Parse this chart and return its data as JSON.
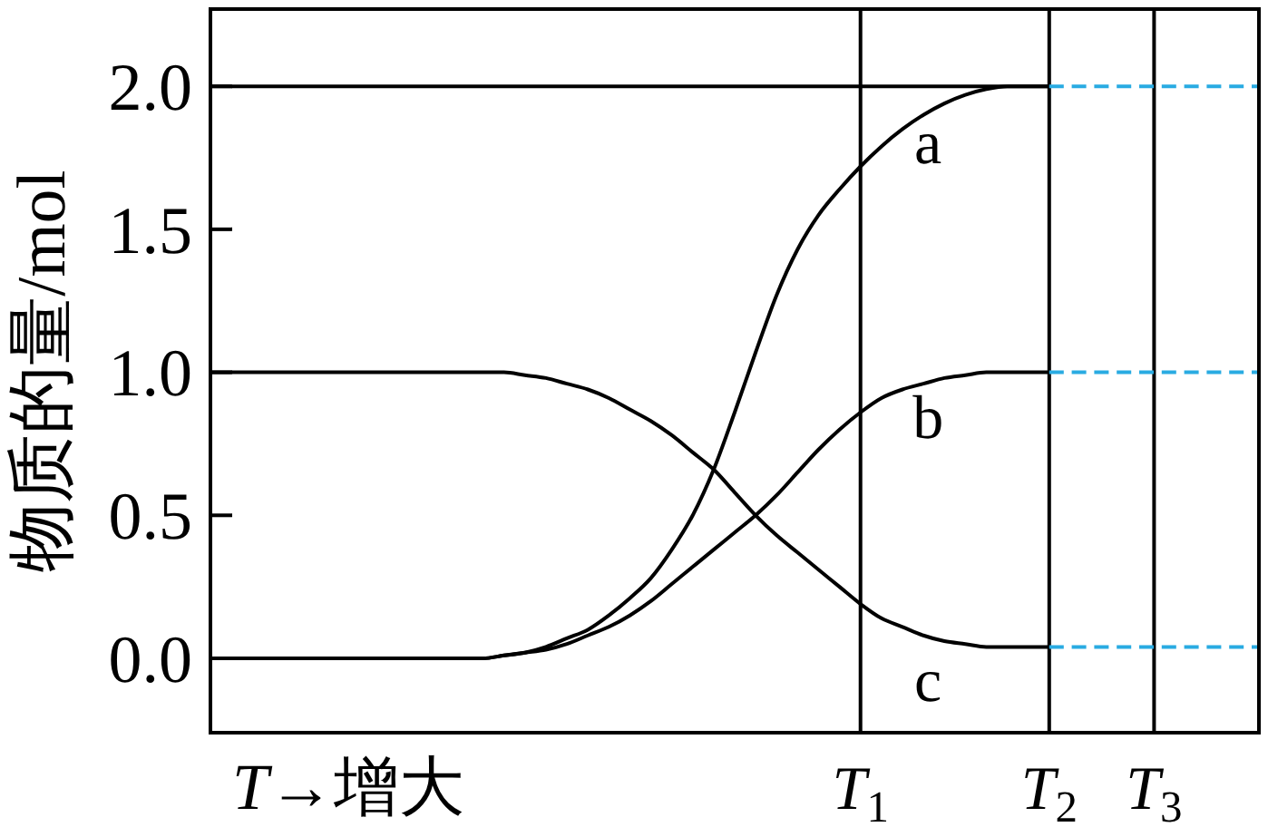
{
  "chart_data": {
    "type": "line",
    "xlabel": "T→增大",
    "ylabel": "物质的量/mol",
    "categories": [
      null,
      null,
      null,
      null,
      null,
      null,
      null,
      null,
      null,
      null,
      null,
      null,
      null,
      null,
      null,
      null,
      null,
      null,
      null,
      null,
      null,
      null,
      null,
      null,
      null,
      null,
      null,
      null,
      null,
      null,
      null,
      "T$_{1}$",
      null,
      null,
      null,
      null,
      null,
      null,
      null,
      null,
      "T$_{2}$",
      null,
      null,
      null,
      null,
      "T$_{3}$",
      null,
      null,
      null,
      null,
      null
    ],
    "ylim": [
      -0.26,
      2.27
    ],
    "yticks": [
      {
        "value": 0,
        "label": "0.0"
      },
      {
        "value": 0.5,
        "label": "0.5"
      },
      {
        "value": 1,
        "label": "1.0"
      },
      {
        "value": 1.5,
        "label": "1.5"
      },
      {
        "value": 2,
        "label": "2.0"
      }
    ],
    "marker": "none",
    "line_style": "solid",
    "ref_lines": [
      {
        "axis": "x",
        "value": "T$_{1}$",
        "color": "#000000"
      },
      {
        "axis": "x",
        "value": "T$_{2}$",
        "color": "#000000"
      },
      {
        "axis": "x",
        "value": "T$_{3}$",
        "color": "#000000"
      }
    ],
    "series": [
      {
        "name": "a",
        "color": "#000000",
        "values": [
          0,
          0,
          0,
          0,
          0,
          0,
          0,
          0,
          0,
          0,
          0,
          0,
          0,
          0,
          0.01,
          0.02,
          0.04,
          0.07,
          0.1,
          0.15,
          0.21,
          0.28,
          0.38,
          0.5,
          0.66,
          0.86,
          1.07,
          1.27,
          1.43,
          1.55,
          1.64,
          1.72,
          1.79,
          1.85,
          1.9,
          1.94,
          1.97,
          1.99,
          2.0,
          2.0,
          2.0,
          null,
          null,
          null,
          null,
          null,
          null,
          null,
          null,
          null,
          null
        ]
      },
      {
        "name": "b",
        "color": "#000000",
        "values": [
          0,
          0,
          0,
          0,
          0,
          0,
          0,
          0,
          0,
          0,
          0,
          0,
          0,
          0,
          0.01,
          0.02,
          0.03,
          0.05,
          0.08,
          0.11,
          0.15,
          0.2,
          0.26,
          0.32,
          0.38,
          0.44,
          0.5,
          0.57,
          0.65,
          0.73,
          0.8,
          0.86,
          0.91,
          0.94,
          0.96,
          0.98,
          0.99,
          1.0,
          1.0,
          1.0,
          1.0,
          null,
          null,
          null,
          null,
          null,
          null,
          null,
          null,
          null,
          null
        ]
      },
      {
        "name": "c",
        "color": "#000000",
        "values": [
          1.0,
          1.0,
          1.0,
          1.0,
          1.0,
          1.0,
          1.0,
          1.0,
          1.0,
          1.0,
          1.0,
          1.0,
          1.0,
          1.0,
          1.0,
          0.99,
          0.98,
          0.96,
          0.94,
          0.91,
          0.87,
          0.83,
          0.78,
          0.72,
          0.66,
          0.58,
          0.5,
          0.43,
          0.37,
          0.31,
          0.25,
          0.19,
          0.14,
          0.11,
          0.08,
          0.06,
          0.05,
          0.04,
          0.04,
          0.04,
          0.04,
          null,
          null,
          null,
          null,
          null,
          null,
          null,
          null,
          null,
          null
        ]
      },
      {
        "color": "#000000",
        "values": [
          2.0,
          2.0,
          2.0,
          2.0,
          2.0,
          2.0,
          2.0,
          2.0,
          2.0,
          2.0,
          2.0,
          2.0,
          2.0,
          2.0,
          2.0,
          2.0,
          2.0,
          2.0,
          2.0,
          2.0,
          2.0,
          2.0,
          2.0,
          2.0,
          2.0,
          2.0,
          2.0,
          2.0,
          2.0,
          2.0,
          2.0,
          2.0,
          2.0,
          2.0,
          2.0,
          2.0,
          2.0,
          2.0,
          2.0,
          2.0,
          2.0,
          null,
          null,
          null,
          null,
          null,
          null,
          null,
          null,
          null,
          null
        ]
      },
      {
        "color": "#29abe2",
        "line_style": "dashed",
        "values": [
          null,
          null,
          null,
          null,
          null,
          null,
          null,
          null,
          null,
          null,
          null,
          null,
          null,
          null,
          null,
          null,
          null,
          null,
          null,
          null,
          null,
          null,
          null,
          null,
          null,
          null,
          null,
          null,
          null,
          null,
          null,
          null,
          null,
          null,
          null,
          null,
          null,
          null,
          null,
          null,
          2.0,
          2.0,
          2.0,
          2.0,
          2.0,
          2.0,
          2.0,
          2.0,
          2.0,
          2.0,
          2.0
        ]
      },
      {
        "color": "#29abe2",
        "line_style": "dashed",
        "values": [
          null,
          null,
          null,
          null,
          null,
          null,
          null,
          null,
          null,
          null,
          null,
          null,
          null,
          null,
          null,
          null,
          null,
          null,
          null,
          null,
          null,
          null,
          null,
          null,
          null,
          null,
          null,
          null,
          null,
          null,
          null,
          null,
          null,
          null,
          null,
          null,
          null,
          null,
          null,
          null,
          1.0,
          1.0,
          1.0,
          1.0,
          1.0,
          1.0,
          1.0,
          1.0,
          1.0,
          1.0,
          1.0
        ]
      },
      {
        "color": "#29abe2",
        "line_style": "dashed",
        "values": [
          null,
          null,
          null,
          null,
          null,
          null,
          null,
          null,
          null,
          null,
          null,
          null,
          null,
          null,
          null,
          null,
          null,
          null,
          null,
          null,
          null,
          null,
          null,
          null,
          null,
          null,
          null,
          null,
          null,
          null,
          null,
          null,
          null,
          null,
          null,
          null,
          null,
          null,
          null,
          null,
          0.04,
          0.04,
          0.04,
          0.04,
          0.04,
          0.04,
          0.04,
          0.04,
          0.04,
          0.04,
          0.04
        ]
      }
    ]
  }
}
